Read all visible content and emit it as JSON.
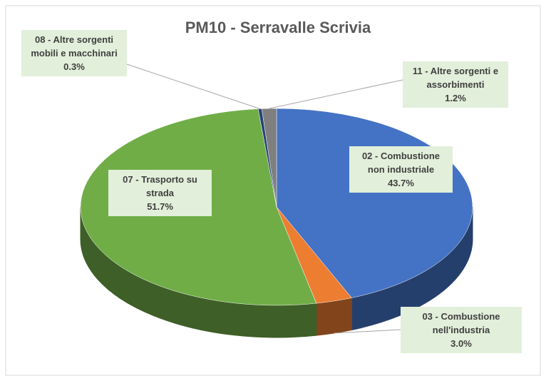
{
  "chart_data": {
    "type": "pie3d",
    "title": "PM10 - Serravalle Scrivia",
    "categories": [
      "02 - Combustione non industriale",
      "03 - Combustione nell'industria",
      "07 - Trasporto su strada",
      "08 - Altre sorgenti mobili e macchinari",
      "11 - Altre sorgenti e assorbimenti"
    ],
    "values": [
      43.7,
      3.0,
      51.7,
      0.3,
      1.2
    ],
    "value_labels": [
      "43.7%",
      "3.0%",
      "51.7%",
      "0.3%",
      "1.2%"
    ],
    "colors": [
      "#4472c4",
      "#ed7d31",
      "#70ad47",
      "#264478",
      "#7f7f7f"
    ]
  }
}
